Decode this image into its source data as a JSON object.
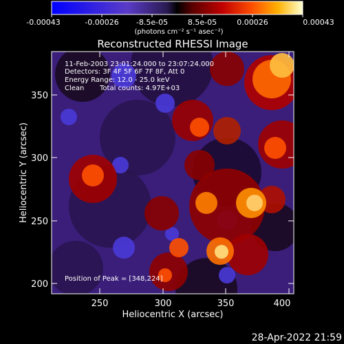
{
  "title": "Reconstructed RHESSI Image",
  "colorbar": {
    "tick_labels": [
      "-0.00043",
      "-0.00026",
      "-8.5e-05",
      "8.5e-05",
      "0.00026",
      "0.00043"
    ],
    "unit_label": "(photons cm⁻² s⁻¹ asec⁻²)"
  },
  "info": {
    "time_range": "11-Feb-2003 23:01:24.000 to 23:07:24.000",
    "detectors": "Detectors: 3F 4F 5F 6F 7F 8F, Att 0",
    "energy": "Energy Range: 12.0 - 25.0 keV",
    "clean_label": "Clean",
    "counts": "Total counts: 4.97E+03",
    "peak": "Position of Peak = [348,224]"
  },
  "axes": {
    "xlabel": "Heliocentric X (arcsec)",
    "ylabel": "Heliocentric Y (arcsec)",
    "xticks": [
      "250",
      "300",
      "350",
      "400"
    ],
    "yticks": [
      "200",
      "250",
      "300",
      "350"
    ],
    "xlim": [
      212,
      402
    ],
    "ylim": [
      190,
      381
    ]
  },
  "footer": {
    "timestamp": "28-Apr-2022 21:59"
  }
}
